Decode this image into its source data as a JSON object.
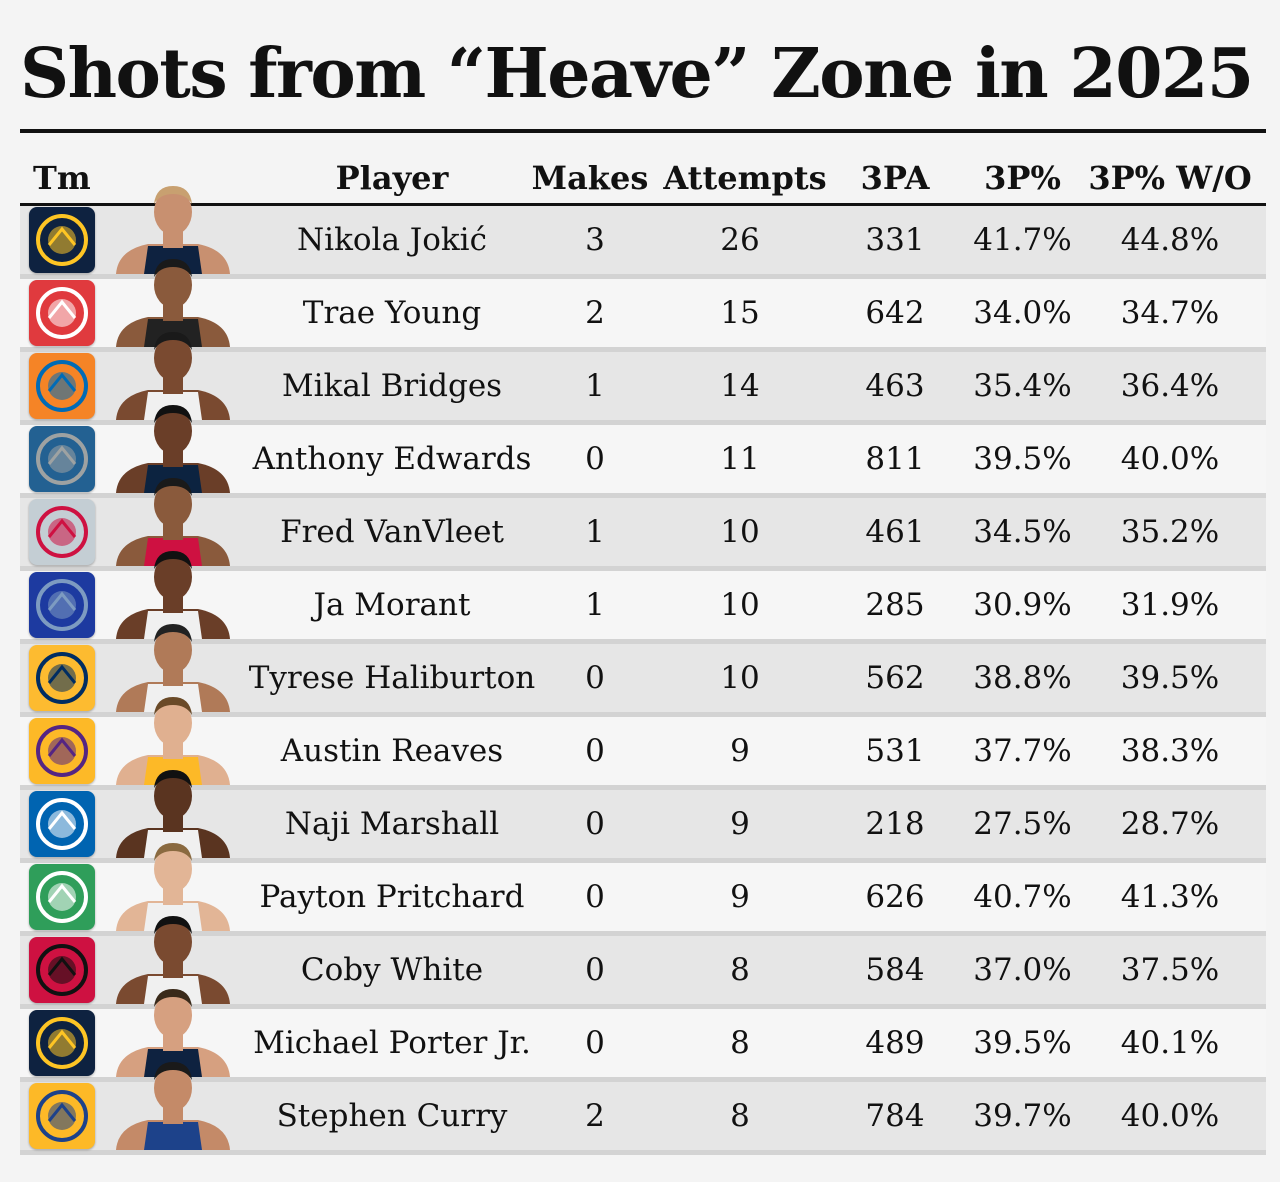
{
  "title": "Shots from “Heave” Zone in 2025",
  "columns": {
    "team": "Tm",
    "player": "Player",
    "makes": "Makes",
    "attempts": "Attempts",
    "three_pa": "3PA",
    "three_pct": "3P%",
    "three_pct_wo": "3P% W/O"
  },
  "chart_data": {
    "type": "table",
    "title": "Shots from “Heave” Zone in 2025",
    "columns": [
      "Tm",
      "Player",
      "Makes",
      "Attempts",
      "3PA",
      "3P%",
      "3P% W/O"
    ],
    "rows": [
      {
        "team_icon": "denver-nuggets-logo-icon",
        "player": "Nikola Jokić",
        "makes": "3",
        "attempts": "26",
        "three_pa": "331",
        "three_pct": "41.7%",
        "three_pct_wo": "44.8%",
        "logo_bg": "#0e2240",
        "logo_fg": "#fec524",
        "jersey": "#0e2240"
      },
      {
        "team_icon": "atlanta-hawks-logo-icon",
        "player": "Trae Young",
        "makes": "2",
        "attempts": "15",
        "three_pa": "642",
        "three_pct": "34.0%",
        "three_pct_wo": "34.7%",
        "logo_bg": "#e03a3e",
        "logo_fg": "#ffffff",
        "jersey": "#222222"
      },
      {
        "team_icon": "new-york-knicks-logo-icon",
        "player": "Mikal Bridges",
        "makes": "1",
        "attempts": "14",
        "three_pa": "463",
        "three_pct": "35.4%",
        "three_pct_wo": "36.4%",
        "logo_bg": "#f58426",
        "logo_fg": "#006bb6",
        "jersey": "#f0f0f0"
      },
      {
        "team_icon": "minnesota-timberwolves-logo-icon",
        "player": "Anthony Edwards",
        "makes": "0",
        "attempts": "11",
        "three_pa": "811",
        "three_pct": "39.5%",
        "three_pct_wo": "40.0%",
        "logo_bg": "#236192",
        "logo_fg": "#9ea2a2",
        "jersey": "#0c2340"
      },
      {
        "team_icon": "houston-rockets-logo-icon",
        "player": "Fred VanVleet",
        "makes": "1",
        "attempts": "10",
        "three_pa": "461",
        "three_pct": "34.5%",
        "three_pct_wo": "35.2%",
        "logo_bg": "#c4ced4",
        "logo_fg": "#ce1141",
        "jersey": "#ce1141"
      },
      {
        "team_icon": "memphis-grizzlies-logo-icon",
        "player": "Ja Morant",
        "makes": "1",
        "attempts": "10",
        "three_pa": "285",
        "three_pct": "30.9%",
        "three_pct_wo": "31.9%",
        "logo_bg": "#1d3aa0",
        "logo_fg": "#7d9bc1",
        "jersey": "#f0f0f0"
      },
      {
        "team_icon": "indiana-pacers-logo-icon",
        "player": "Tyrese Haliburton",
        "makes": "0",
        "attempts": "10",
        "three_pa": "562",
        "three_pct": "38.8%",
        "three_pct_wo": "39.5%",
        "logo_bg": "#fdbb30",
        "logo_fg": "#002d62",
        "jersey": "#f0f0f0"
      },
      {
        "team_icon": "los-angeles-lakers-logo-icon",
        "player": "Austin Reaves",
        "makes": "0",
        "attempts": "9",
        "three_pa": "531",
        "three_pct": "37.7%",
        "three_pct_wo": "38.3%",
        "logo_bg": "#fdb927",
        "logo_fg": "#552583",
        "jersey": "#fdb927"
      },
      {
        "team_icon": "dallas-mavericks-logo-icon",
        "player": "Naji Marshall",
        "makes": "0",
        "attempts": "9",
        "three_pa": "218",
        "three_pct": "27.5%",
        "three_pct_wo": "28.7%",
        "logo_bg": "#0064b1",
        "logo_fg": "#ffffff",
        "jersey": "#f0f0f0"
      },
      {
        "team_icon": "boston-celtics-logo-icon",
        "player": "Payton Pritchard",
        "makes": "0",
        "attempts": "9",
        "three_pa": "626",
        "three_pct": "40.7%",
        "three_pct_wo": "41.3%",
        "logo_bg": "#2f9e5a",
        "logo_fg": "#ffffff",
        "jersey": "#f0f0f0"
      },
      {
        "team_icon": "chicago-bulls-logo-icon",
        "player": "Coby White",
        "makes": "0",
        "attempts": "8",
        "three_pa": "584",
        "three_pct": "37.0%",
        "three_pct_wo": "37.5%",
        "logo_bg": "#ce1141",
        "logo_fg": "#111111",
        "jersey": "#f0f0f0"
      },
      {
        "team_icon": "denver-nuggets-logo-icon",
        "player": "Michael Porter Jr.",
        "makes": "0",
        "attempts": "8",
        "three_pa": "489",
        "three_pct": "39.5%",
        "three_pct_wo": "40.1%",
        "logo_bg": "#0e2240",
        "logo_fg": "#fec524",
        "jersey": "#0e2240"
      },
      {
        "team_icon": "golden-state-warriors-logo-icon",
        "player": "Stephen Curry",
        "makes": "2",
        "attempts": "8",
        "three_pa": "784",
        "three_pct": "39.7%",
        "three_pct_wo": "40.0%",
        "logo_bg": "#fdb927",
        "logo_fg": "#1d428a",
        "jersey": "#1d428a"
      }
    ]
  }
}
